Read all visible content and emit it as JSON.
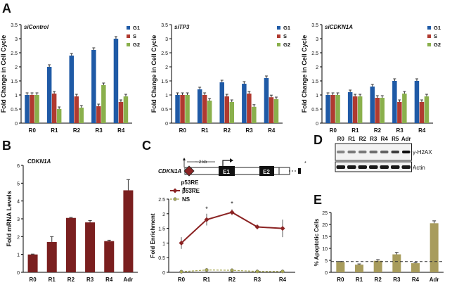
{
  "panel_labels": {
    "A": "A",
    "B": "B",
    "C": "C",
    "D": "D",
    "E": "E"
  },
  "colors": {
    "g1": "#1f5aa6",
    "s": "#b03a30",
    "g2": "#8ab04c",
    "mrna": "#7a1f1f",
    "p53re": "#8b2323",
    "ns": "#a8a852",
    "apop": "#a89c5c",
    "promoter": "#8b2323"
  },
  "chart_data": [
    {
      "id": "siControl",
      "type": "bar",
      "title": "siControl",
      "categories": [
        "R0",
        "R1",
        "R2",
        "R3",
        "R4"
      ],
      "series": [
        {
          "name": "G1",
          "values": [
            1.0,
            2.0,
            2.4,
            2.6,
            3.0
          ]
        },
        {
          "name": "S",
          "values": [
            1.0,
            1.05,
            0.95,
            0.6,
            0.75
          ]
        },
        {
          "name": "G2",
          "values": [
            1.0,
            0.5,
            0.55,
            1.35,
            0.95
          ]
        }
      ],
      "ylabel": "Fold Change in Cell Cycle",
      "ylim": [
        0,
        3.5
      ],
      "yticks": [
        0,
        0.5,
        1,
        1.5,
        2,
        2.5,
        3,
        3.5
      ],
      "legend": "top-right"
    },
    {
      "id": "siTP3",
      "type": "bar",
      "title": "siTP3",
      "categories": [
        "R0",
        "R1",
        "R2",
        "R3",
        "R4"
      ],
      "series": [
        {
          "name": "G1",
          "values": [
            1.0,
            1.2,
            1.45,
            1.4,
            1.6
          ]
        },
        {
          "name": "S",
          "values": [
            1.0,
            1.0,
            0.95,
            1.05,
            0.92
          ]
        },
        {
          "name": "G2",
          "values": [
            1.0,
            0.8,
            0.75,
            0.58,
            0.85
          ]
        }
      ],
      "ylabel": "Fold Change in Cell Cycle",
      "ylim": [
        0,
        3.5
      ],
      "yticks": [
        0,
        0.5,
        1,
        1.5,
        2,
        2.5,
        3,
        3.5
      ],
      "legend": "top-right"
    },
    {
      "id": "siCDKN1A",
      "type": "bar",
      "title": "siCDKN1A",
      "categories": [
        "R0",
        "R1",
        "R2",
        "R3",
        "R4"
      ],
      "series": [
        {
          "name": "G1",
          "values": [
            1.0,
            1.1,
            1.3,
            1.5,
            1.5
          ]
        },
        {
          "name": "S",
          "values": [
            1.0,
            0.95,
            0.9,
            0.75,
            0.75
          ]
        },
        {
          "name": "G2",
          "values": [
            1.0,
            0.95,
            0.9,
            1.05,
            0.95
          ]
        }
      ],
      "ylabel": "Fold Change in Cell Cycle",
      "ylim": [
        0,
        3.5
      ],
      "yticks": [
        0,
        0.5,
        1,
        1.5,
        2,
        2.5,
        3,
        3.5
      ],
      "legend": "top-right"
    },
    {
      "id": "mrna",
      "type": "bar",
      "title": "CDKN1A",
      "categories": [
        "R0",
        "R1",
        "R2",
        "R3",
        "R4",
        "Adr"
      ],
      "values": [
        1.0,
        1.7,
        3.05,
        2.8,
        1.75,
        4.6
      ],
      "errors": [
        0.02,
        0.3,
        0.03,
        0.1,
        0.05,
        0.6
      ],
      "ylabel": "Fold mRNA Levels",
      "ylim": [
        0,
        6
      ],
      "yticks": [
        0,
        1,
        2,
        3,
        4,
        5,
        6
      ]
    },
    {
      "id": "chip",
      "type": "line",
      "categories": [
        "R0",
        "R1",
        "R2",
        "R3",
        "R4"
      ],
      "series": [
        {
          "name": "p53RE",
          "values": [
            1.0,
            1.8,
            2.05,
            1.55,
            1.5
          ],
          "errors": [
            0.2,
            0.2,
            0.1,
            0.08,
            0.3
          ]
        },
        {
          "name": "NS",
          "values": [
            0.02,
            0.08,
            0.07,
            0.03,
            0.03
          ],
          "errors": [
            0.02,
            0.02,
            0.02,
            0.02,
            0.02
          ]
        }
      ],
      "ylabel": "Fold Enrichment",
      "ylim": [
        0,
        2.5
      ],
      "yticks": [
        0,
        0.5,
        1,
        1.5,
        2,
        2.5
      ],
      "annotations": [
        "*",
        "*"
      ],
      "legend": "top-left"
    },
    {
      "id": "apoptosis",
      "type": "bar",
      "categories": [
        "R0",
        "R1",
        "R2",
        "R3",
        "R4",
        "Adr"
      ],
      "values": [
        4.3,
        3.2,
        4.8,
        7.5,
        3.8,
        20.5
      ],
      "errors": [
        0.2,
        0.3,
        0.5,
        0.8,
        0.2,
        1.0
      ],
      "ylabel": "% Apoptotic Cells",
      "ylim": [
        0,
        25
      ],
      "yticks": [
        0,
        5,
        10,
        15,
        20,
        25
      ],
      "reference_line": 4.5
    }
  ],
  "gene_diagram": {
    "gene": "CDKN1A",
    "scale": "~ 2 kb",
    "exon1": "E1",
    "exon2": "E2",
    "element": "p53RE"
  },
  "western": {
    "lanes": [
      "R0",
      "R1",
      "R2",
      "R3",
      "R4",
      "R5",
      "Adr"
    ],
    "labels": [
      "γ-H2AX",
      "Actin"
    ],
    "gh2ax_intensity": [
      0.45,
      0.5,
      0.5,
      0.55,
      0.6,
      0.75,
      0.95
    ],
    "actin_intensity": [
      0.9,
      0.9,
      0.9,
      0.9,
      0.9,
      0.9,
      0.9
    ]
  }
}
